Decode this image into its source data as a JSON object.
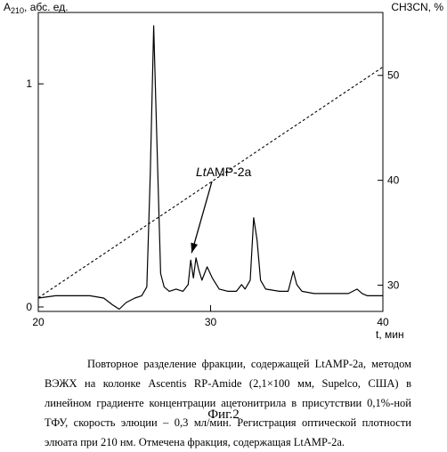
{
  "chart_data": {
    "type": "line",
    "ylabel_left": "A210, абс. ед.",
    "ylabel_right": "CH3CN, %",
    "xlabel": "t, мин",
    "x_ticks": [
      20,
      30,
      40
    ],
    "y_left_ticks": [
      0,
      1
    ],
    "y_right_ticks": [
      30,
      40,
      50
    ],
    "xlim": [
      20,
      40
    ],
    "ylim_left": [
      -0.02,
      1.32
    ],
    "ylim_right": [
      27.5,
      56
    ],
    "annotation": "LtAMP-2a",
    "annotation_target": {
      "x": 28.9,
      "y": 0.21
    },
    "series": [
      {
        "style": "solid",
        "x": [
          20,
          21,
          22,
          23,
          23.8,
          24.3,
          24.7,
          25.1,
          25.6,
          26.0,
          26.3,
          26.5,
          26.7,
          26.9,
          27.1,
          27.3,
          27.6,
          28.0,
          28.4,
          28.7,
          28.85,
          29.0,
          29.15,
          29.3,
          29.5,
          29.8,
          30.1,
          30.5,
          31.0,
          31.5,
          31.8,
          32.0,
          32.3,
          32.5,
          32.7,
          32.9,
          33.2,
          34.0,
          34.5,
          34.8,
          35.0,
          35.3,
          36.0,
          37.0,
          38.0,
          38.5,
          38.8,
          39.1,
          40.0
        ],
        "y": [
          0.04,
          0.05,
          0.05,
          0.05,
          0.04,
          0.01,
          -0.01,
          0.02,
          0.04,
          0.05,
          0.09,
          0.6,
          1.26,
          0.7,
          0.15,
          0.09,
          0.07,
          0.08,
          0.07,
          0.1,
          0.21,
          0.13,
          0.22,
          0.17,
          0.12,
          0.18,
          0.13,
          0.08,
          0.07,
          0.07,
          0.1,
          0.08,
          0.12,
          0.4,
          0.3,
          0.12,
          0.08,
          0.07,
          0.07,
          0.16,
          0.1,
          0.07,
          0.06,
          0.06,
          0.06,
          0.08,
          0.06,
          0.05,
          0.05
        ]
      },
      {
        "style": "dashed",
        "axis": "right",
        "x": [
          20,
          40
        ],
        "y": [
          28.8,
          50.8
        ]
      }
    ]
  },
  "caption": "Повторное разделение фракции, содержащей LtAMP-2a, методом ВЭЖХ на колонке Ascentis RP-Amide (2,1×100 мм, Supelco, США) в линейном градиенте концентрации ацетонитрила в присутствии 0,1%-ной ТФУ, скорость элюции – 0,3 мл/мин. Регистрация оптической плотности элюата при 210 нм. Отмечена фракция, содержащая LtAMP-2a.",
  "figure_label": "Фиг.2"
}
